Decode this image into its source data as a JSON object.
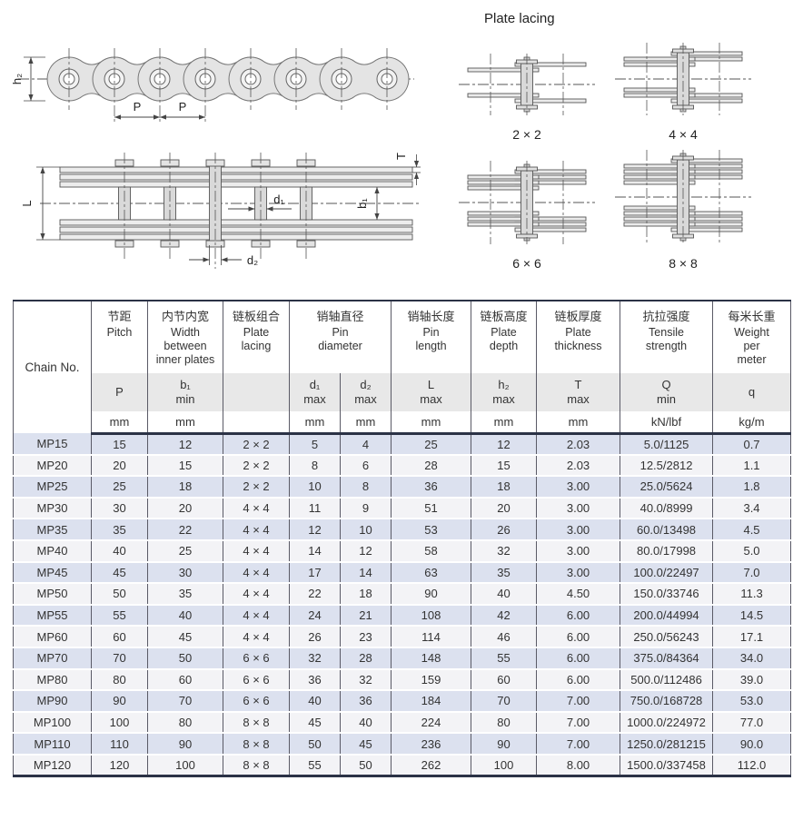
{
  "lacing_section": {
    "title": "Plate lacing",
    "diagrams": [
      {
        "label": "2 × 2",
        "pairs": 1
      },
      {
        "label": "4 × 4",
        "pairs": 2
      },
      {
        "label": "6 × 6",
        "pairs": 3
      },
      {
        "label": "8 × 8",
        "pairs": 4
      }
    ]
  },
  "side_view": {
    "labels": {
      "h2": "h₂",
      "p_left": "P",
      "p_right": "P"
    }
  },
  "plan_view": {
    "labels": {
      "L": "L",
      "T": "T",
      "d1": "d₁",
      "b1": "b₁",
      "d2": "d₂"
    }
  },
  "table": {
    "chain_no_header": "Chain No.",
    "columns": [
      {
        "cn": "节距",
        "en": "Pitch",
        "sym": "P",
        "qual": "",
        "unit": "mm"
      },
      {
        "cn": "内节内宽",
        "en": "Width\nbetween\ninner plates",
        "sym": "b₁",
        "qual": "min",
        "unit": "mm"
      },
      {
        "cn": "链板组合",
        "en": "Plate\nlacing",
        "sym": "",
        "qual": "",
        "unit": ""
      },
      {
        "cn": "销轴直径",
        "en": "Pin\ndiameter",
        "sub": [
          {
            "sym": "d₁",
            "qual": "max",
            "unit": "mm"
          },
          {
            "sym": "d₂",
            "qual": "max",
            "unit": "mm"
          }
        ]
      },
      {
        "cn": "销轴长度",
        "en": "Pin\nlength",
        "sym": "L",
        "qual": "max",
        "unit": "mm"
      },
      {
        "cn": "链板高度",
        "en": "Plate\ndepth",
        "sym": "h₂",
        "qual": "max",
        "unit": "mm"
      },
      {
        "cn": "链板厚度",
        "en": "Plate\nthickness",
        "sym": "T",
        "qual": "max",
        "unit": "mm"
      },
      {
        "cn": "抗拉强度",
        "en": "Tensile\nstrength",
        "sym": "Q",
        "qual": "min",
        "unit": "kN/lbf"
      },
      {
        "cn": "每米长重",
        "en": "Weight\nper\nmeter",
        "sym": "q",
        "qual": "",
        "unit": "kg/m"
      }
    ],
    "rows": [
      [
        "MP15",
        "15",
        "12",
        "2 × 2",
        "5",
        "4",
        "25",
        "12",
        "2.03",
        "5.0/1125",
        "0.7"
      ],
      [
        "MP20",
        "20",
        "15",
        "2 × 2",
        "8",
        "6",
        "28",
        "15",
        "2.03",
        "12.5/2812",
        "1.1"
      ],
      [
        "MP25",
        "25",
        "18",
        "2 × 2",
        "10",
        "8",
        "36",
        "18",
        "3.00",
        "25.0/5624",
        "1.8"
      ],
      [
        "MP30",
        "30",
        "20",
        "4 × 4",
        "11",
        "9",
        "51",
        "20",
        "3.00",
        "40.0/8999",
        "3.4"
      ],
      [
        "MP35",
        "35",
        "22",
        "4 × 4",
        "12",
        "10",
        "53",
        "26",
        "3.00",
        "60.0/13498",
        "4.5"
      ],
      [
        "MP40",
        "40",
        "25",
        "4 × 4",
        "14",
        "12",
        "58",
        "32",
        "3.00",
        "80.0/17998",
        "5.0"
      ],
      [
        "MP45",
        "45",
        "30",
        "4 × 4",
        "17",
        "14",
        "63",
        "35",
        "3.00",
        "100.0/22497",
        "7.0"
      ],
      [
        "MP50",
        "50",
        "35",
        "4 × 4",
        "22",
        "18",
        "90",
        "40",
        "4.50",
        "150.0/33746",
        "11.3"
      ],
      [
        "MP55",
        "55",
        "40",
        "4 × 4",
        "24",
        "21",
        "108",
        "42",
        "6.00",
        "200.0/44994",
        "14.5"
      ],
      [
        "MP60",
        "60",
        "45",
        "4 × 4",
        "26",
        "23",
        "114",
        "46",
        "6.00",
        "250.0/56243",
        "17.1"
      ],
      [
        "MP70",
        "70",
        "50",
        "6 × 6",
        "32",
        "28",
        "148",
        "55",
        "6.00",
        "375.0/84364",
        "34.0"
      ],
      [
        "MP80",
        "80",
        "60",
        "6 × 6",
        "36",
        "32",
        "159",
        "60",
        "6.00",
        "500.0/112486",
        "39.0"
      ],
      [
        "MP90",
        "90",
        "70",
        "6 × 6",
        "40",
        "36",
        "184",
        "70",
        "7.00",
        "750.0/168728",
        "53.0"
      ],
      [
        "MP100",
        "100",
        "80",
        "8 × 8",
        "45",
        "40",
        "224",
        "80",
        "7.00",
        "1000.0/224972",
        "77.0"
      ],
      [
        "MP110",
        "110",
        "90",
        "8 × 8",
        "50",
        "45",
        "236",
        "90",
        "7.00",
        "1250.0/281215",
        "90.0"
      ],
      [
        "MP120",
        "120",
        "100",
        "8 × 8",
        "55",
        "50",
        "262",
        "100",
        "8.00",
        "1500.0/337458",
        "112.0"
      ]
    ]
  },
  "colors": {
    "row_blue": "#dce1ef",
    "row_gray": "#f3f3f6",
    "header_band": "#e8e8e8",
    "heavy_border": "#2b3246",
    "grid_line": "#5a5a66",
    "diagram_fill": "#e4e4e4",
    "diagram_stroke": "#555555"
  }
}
